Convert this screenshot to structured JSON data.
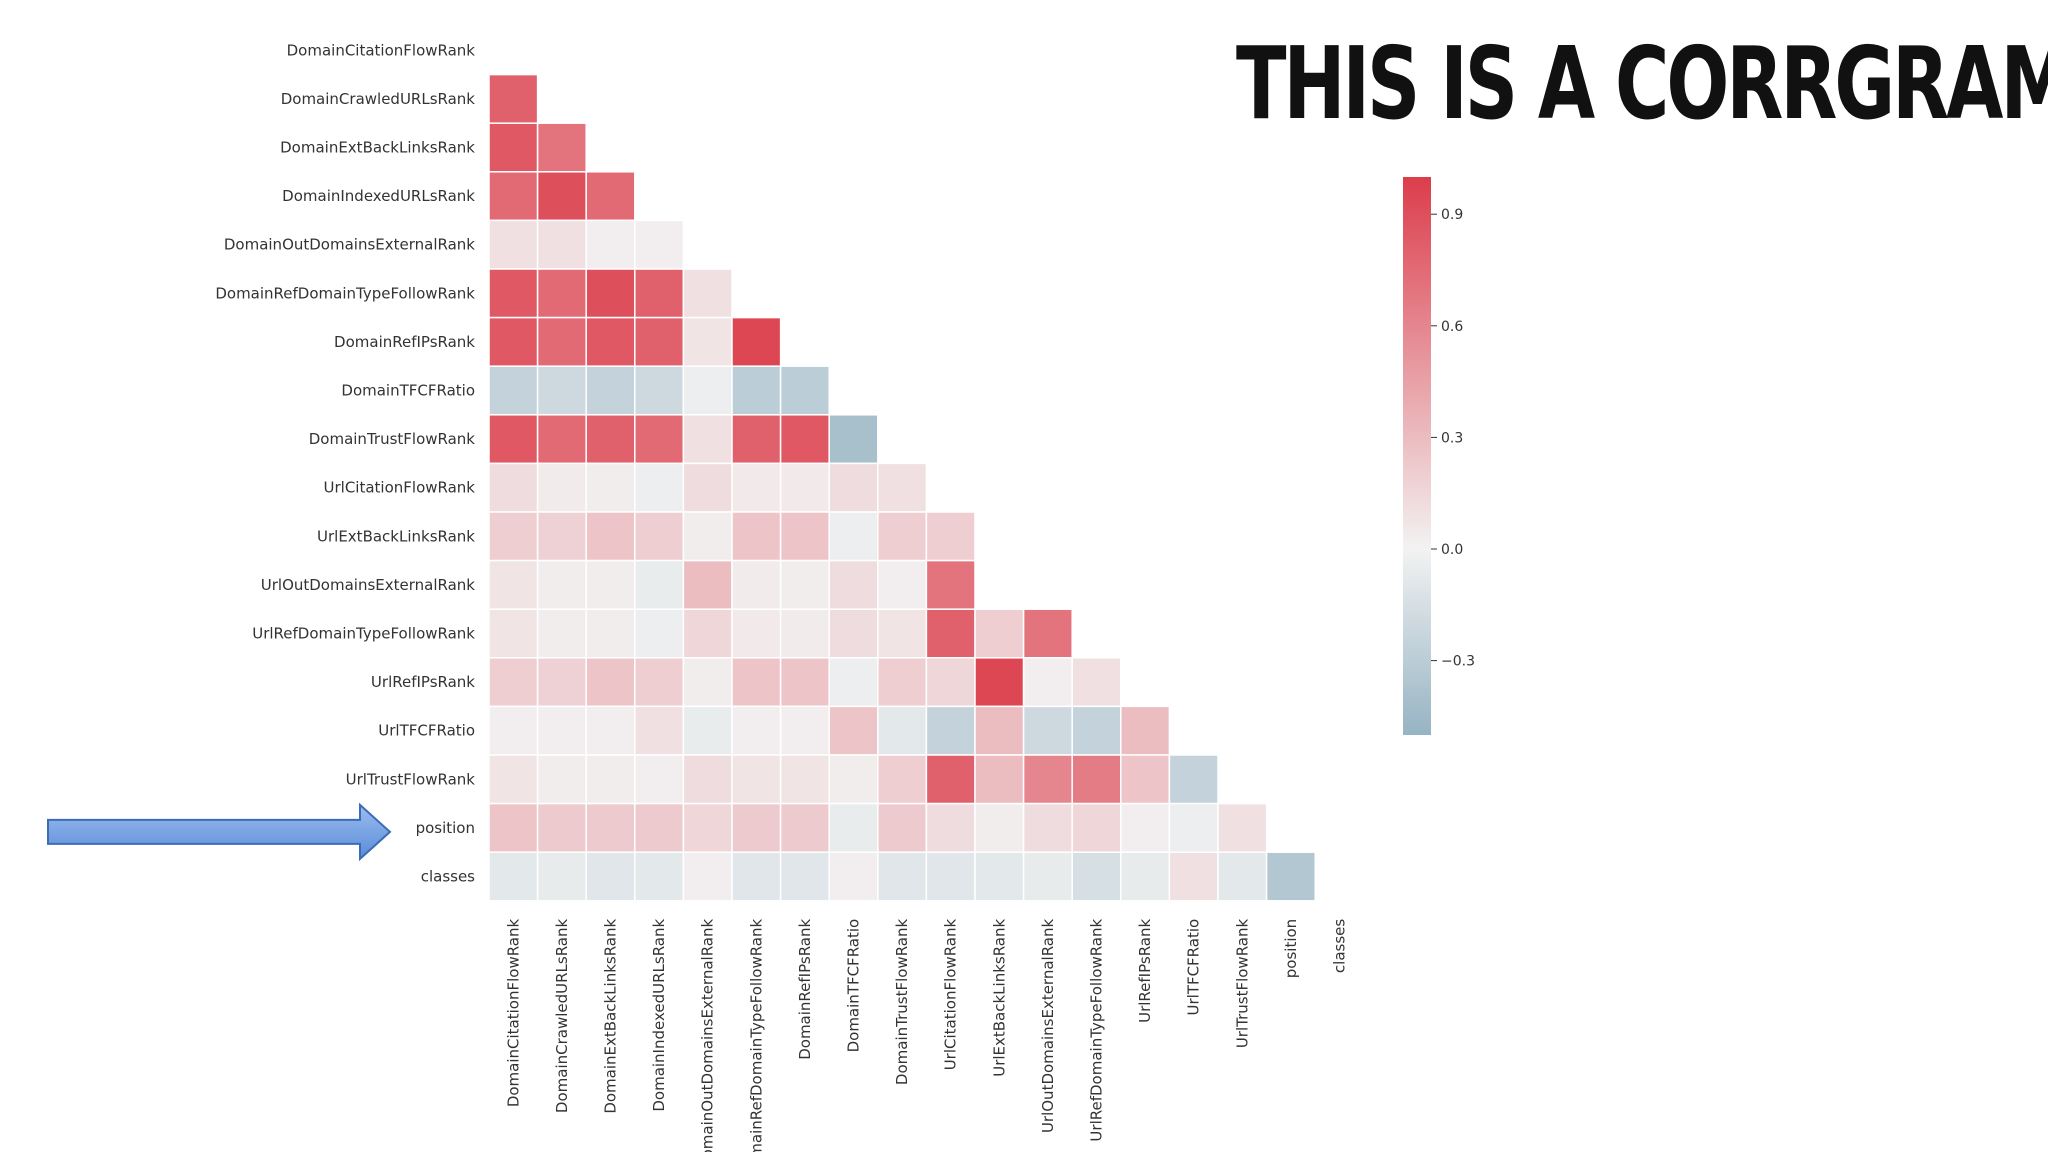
{
  "slide": {
    "title": "THIS IS A CORRGRAM"
  },
  "chart_data": {
    "type": "heatmap",
    "subtype": "lower-triangle correlation matrix",
    "variables": [
      "DomainCitationFlowRank",
      "DomainCrawledURLsRank",
      "DomainExtBackLinksRank",
      "DomainIndexedURLsRank",
      "DomainOutDomainsExternalRank",
      "DomainRefDomainTypeFollowRank",
      "DomainRefIPsRank",
      "DomainTFCFRatio",
      "DomainTrustFlowRank",
      "UrlCitationFlowRank",
      "UrlExtBackLinksRank",
      "UrlOutDomainsExternalRank",
      "UrlRefDomainTypeFollowRank",
      "UrlRefIPsRank",
      "UrlTFCFRatio",
      "UrlTrustFlowRank",
      "position",
      "classes"
    ],
    "lower_triangle_values": [
      [],
      [
        0.8
      ],
      [
        0.85,
        0.7
      ],
      [
        0.75,
        0.9,
        0.75
      ],
      [
        0.1,
        0.1,
        0.02,
        0.02
      ],
      [
        0.85,
        0.75,
        0.9,
        0.8,
        0.1
      ],
      [
        0.85,
        0.75,
        0.85,
        0.8,
        0.08,
        0.95
      ],
      [
        -0.25,
        -0.2,
        -0.25,
        -0.2,
        -0.03,
        -0.3,
        -0.3
      ],
      [
        0.85,
        0.75,
        0.8,
        0.75,
        0.1,
        0.8,
        0.85,
        -0.4
      ],
      [
        0.12,
        0.04,
        0.03,
        -0.03,
        0.12,
        0.05,
        0.05,
        0.12,
        0.1
      ],
      [
        0.2,
        0.18,
        0.25,
        0.2,
        0.03,
        0.25,
        0.25,
        -0.03,
        0.2,
        0.2
      ],
      [
        0.08,
        0.03,
        0.03,
        -0.05,
        0.3,
        0.04,
        0.03,
        0.12,
        0.02,
        0.7
      ],
      [
        0.08,
        0.03,
        0.03,
        -0.03,
        0.15,
        0.05,
        0.04,
        0.12,
        0.08,
        0.8,
        0.2,
        0.7
      ],
      [
        0.2,
        0.18,
        0.25,
        0.2,
        0.03,
        0.25,
        0.25,
        -0.03,
        0.2,
        0.15,
        0.95,
        0.02,
        0.1
      ],
      [
        0.02,
        0.02,
        0.02,
        0.1,
        -0.05,
        0.02,
        0.02,
        0.25,
        -0.08,
        -0.25,
        0.3,
        -0.2,
        -0.25,
        0.3
      ],
      [
        0.08,
        0.03,
        0.03,
        0.02,
        0.12,
        0.08,
        0.08,
        0.03,
        0.2,
        0.8,
        0.3,
        0.6,
        0.65,
        0.25,
        -0.25
      ],
      [
        0.25,
        0.22,
        0.22,
        0.22,
        0.15,
        0.22,
        0.22,
        -0.05,
        0.22,
        0.12,
        0.03,
        0.12,
        0.15,
        0.02,
        -0.03,
        0.1
      ],
      [
        -0.08,
        -0.06,
        -0.1,
        -0.08,
        0.02,
        -0.1,
        -0.1,
        0.02,
        -0.1,
        -0.1,
        -0.08,
        -0.06,
        -0.15,
        -0.06,
        0.1,
        -0.08,
        -0.35
      ]
    ],
    "colorbar": {
      "range": [
        -0.5,
        1.0
      ],
      "ticks": [
        {
          "value": 0.9,
          "label": "0.9"
        },
        {
          "value": 0.6,
          "label": "0.6"
        },
        {
          "value": 0.3,
          "label": "0.3"
        },
        {
          "value": 0.0,
          "label": "0.0"
        },
        {
          "value": -0.3,
          "label": "−0.3"
        }
      ]
    },
    "colors": {
      "positive": "#dc3d4b",
      "neutral": "#f2f2f2",
      "negative": "#96b4c3",
      "grid_line": "#ffffff",
      "arrow_fill": "#5b8bd8",
      "arrow_stroke": "#3a6db5"
    },
    "annotation": {
      "type": "arrow",
      "points_to": "position"
    },
    "grid": false,
    "legend": "colorbar at right"
  }
}
